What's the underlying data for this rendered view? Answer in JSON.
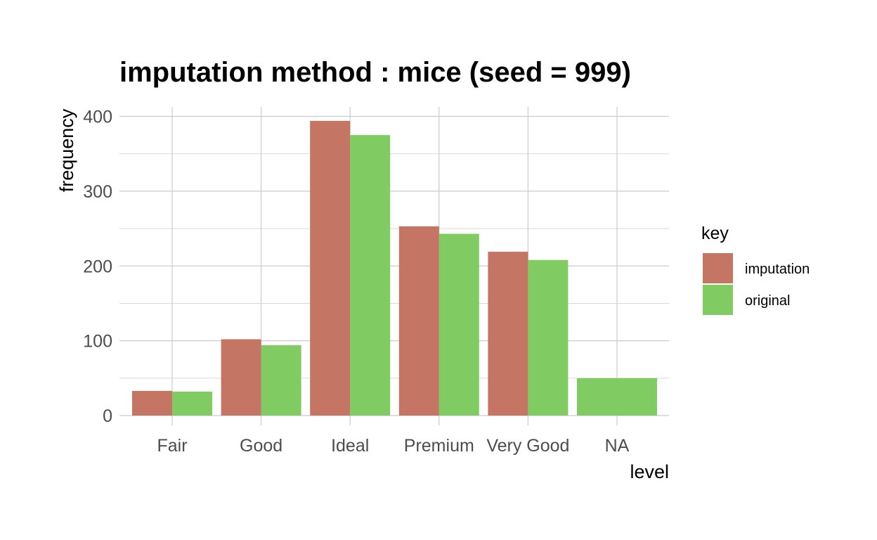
{
  "chart_data": {
    "type": "bar",
    "title": "imputation method : mice (seed = 999)",
    "xlabel": "level",
    "ylabel": "frequency",
    "categories": [
      "Fair",
      "Good",
      "Ideal",
      "Premium",
      "Very Good",
      "NA"
    ],
    "series": [
      {
        "name": "imputation",
        "color": "#c57563",
        "values": [
          33,
          102,
          394,
          253,
          219,
          null
        ]
      },
      {
        "name": "original",
        "color": "#80cc62",
        "values": [
          32,
          94,
          375,
          243,
          208,
          50
        ]
      }
    ],
    "ylim": [
      0,
      400
    ],
    "yticks": [
      "0",
      "100",
      "200",
      "300",
      "400"
    ],
    "legend": {
      "title": "key",
      "position": "right"
    },
    "grid": true
  }
}
